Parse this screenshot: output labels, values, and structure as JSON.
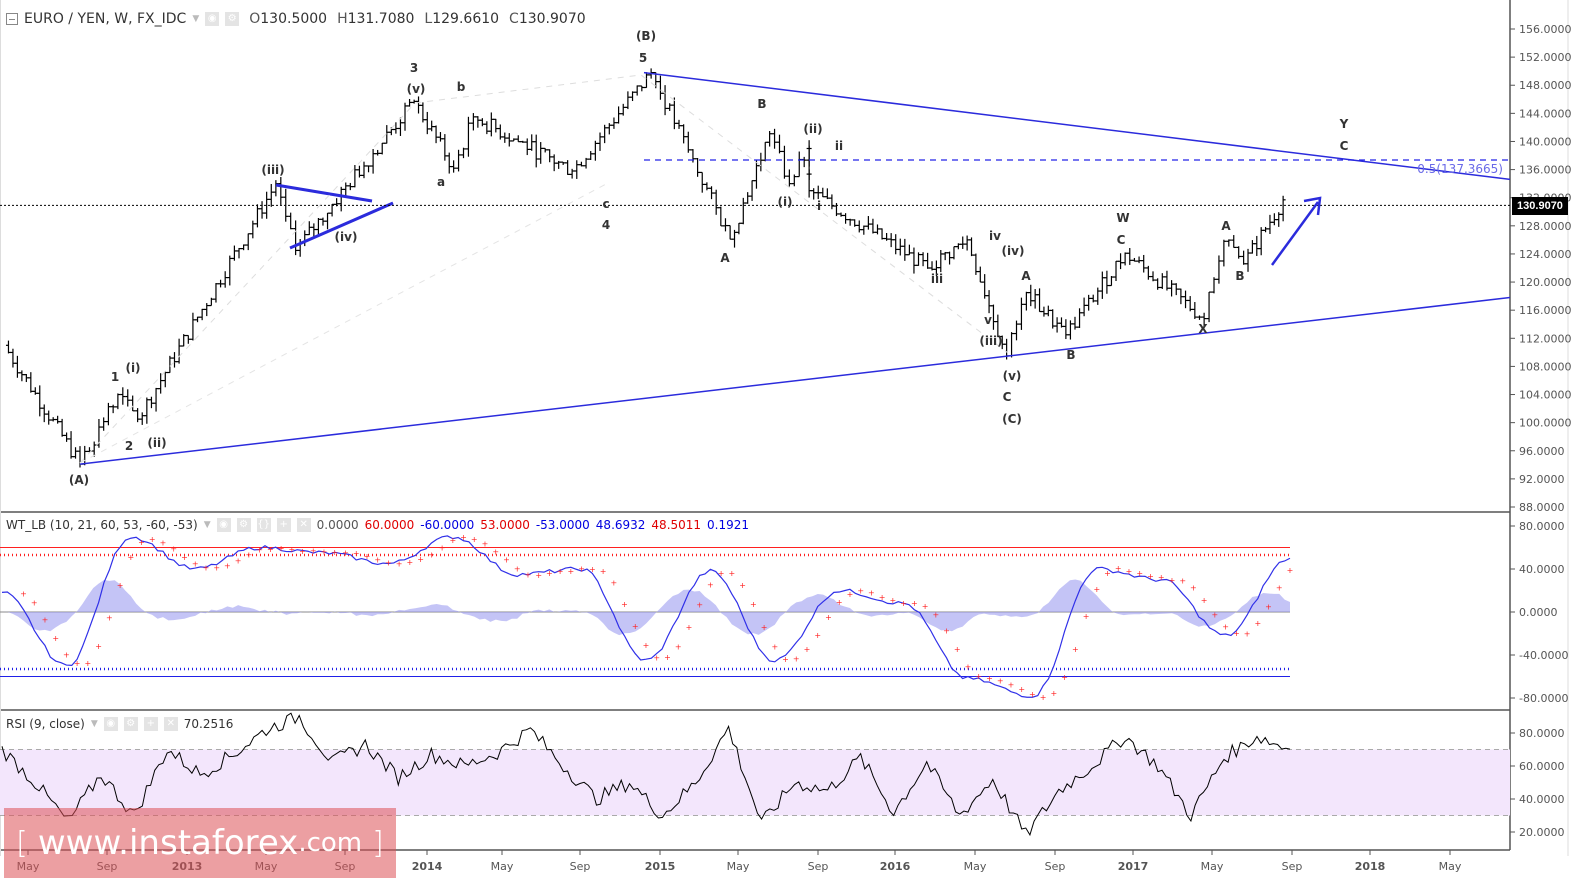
{
  "header": {
    "symbol": "EURO / YEN, W, FX_IDC",
    "ohlc": [
      {
        "label": "O",
        "value": "130.5000"
      },
      {
        "label": "H",
        "value": "131.7080"
      },
      {
        "label": "L",
        "value": "129.6610"
      },
      {
        "label": "C",
        "value": "130.9070"
      }
    ],
    "last_price_tag": "130.9070"
  },
  "icons": {
    "collapse": "minus-box-icon",
    "visibility": "eye-icon",
    "settings": "gear-icon",
    "source": "braces-icon",
    "add": "plus-icon",
    "remove": "close-icon",
    "dropdown": "caret-down-icon"
  },
  "colors": {
    "bars": "#000000",
    "trendline": "#2b2bdc",
    "fib_line": "#2323e6",
    "wt1": "#3030e8",
    "wt2": "#ff2020",
    "wt_hist": "#9c9cf0",
    "ob_level": "#ff2020",
    "os_level": "#2020e8",
    "rsi_line": "#000000",
    "rsi_band": "#f3e6fc",
    "watermark": "#dc5055"
  },
  "wt_panel": {
    "title": "WT_LB (10, 21, 60, 53, -60, -53)",
    "values": [
      {
        "text": "0.0000",
        "color": "grey"
      },
      {
        "text": "60.0000",
        "color": "red"
      },
      {
        "text": "-60.0000",
        "color": "blue"
      },
      {
        "text": "53.0000",
        "color": "red"
      },
      {
        "text": "-53.0000",
        "color": "blue"
      },
      {
        "text": "48.6932",
        "color": "blue"
      },
      {
        "text": "48.5011",
        "color": "red"
      },
      {
        "text": "0.1921",
        "color": "blue"
      }
    ]
  },
  "rsi_panel": {
    "title": "RSI (9, close)",
    "value": "70.2516"
  },
  "watermark": {
    "open": "[",
    "text": "www.instaforex",
    "suffix": ".com",
    "close": "]"
  },
  "fib_label": "0.5(137.3665)",
  "chart_data": [
    {
      "type": "ohlc",
      "title": "EURO / YEN, W, FX_IDC",
      "timeframe": "Weekly",
      "ylim": [
        88,
        156
      ],
      "y_ticks": [
        "156.0000",
        "152.0000",
        "148.0000",
        "144.0000",
        "140.0000",
        "136.0000",
        "132.0000",
        "128.0000",
        "124.0000",
        "120.0000",
        "116.0000",
        "112.0000",
        "108.0000",
        "104.0000",
        "100.0000",
        "96.0000",
        "92.0000",
        "88.0000"
      ],
      "x_ticks": [
        "May",
        "Sep",
        "2013",
        "May",
        "Sep",
        "2014",
        "May",
        "Sep",
        "2015",
        "May",
        "Sep",
        "2016",
        "May",
        "Sep",
        "2017",
        "May",
        "Sep",
        "2018",
        "May"
      ],
      "last_close": 130.907,
      "approx_swings": [
        {
          "date": "2012-03",
          "price": 111
        },
        {
          "date": "2012-07",
          "price": 94.1,
          "label": "(A)"
        },
        {
          "date": "2012-09",
          "price": 104,
          "label": "1 / (i)"
        },
        {
          "date": "2012-10",
          "price": 100.5,
          "label": "2 / (ii)"
        },
        {
          "date": "2013-05",
          "price": 134,
          "label": "(iii)"
        },
        {
          "date": "2013-06",
          "price": 124.5,
          "label": "(iv)"
        },
        {
          "date": "2013-12",
          "price": 145.7,
          "label": "3 / (v)"
        },
        {
          "date": "2014-02",
          "price": 136.2,
          "label": "a"
        },
        {
          "date": "2014-03",
          "price": 143.5,
          "label": "b"
        },
        {
          "date": "2014-08",
          "price": 135.8,
          "label": "c / 4"
        },
        {
          "date": "2014-12",
          "price": 149.8,
          "label": "(B) / 5"
        },
        {
          "date": "2015-04",
          "price": 126.1,
          "label": "A"
        },
        {
          "date": "2015-06",
          "price": 141.1,
          "label": "B"
        },
        {
          "date": "2015-07",
          "price": 134.0,
          "label": "(i)"
        },
        {
          "date": "2015-08",
          "price": 139.0,
          "label": "(ii) / ii"
        },
        {
          "date": "2015-08",
          "price": 133,
          "label": "i"
        },
        {
          "date": "2016-02",
          "price": 122.0,
          "label": "iii"
        },
        {
          "date": "2016-04",
          "price": 126.0,
          "label": "iv / (iv)"
        },
        {
          "date": "2016-06",
          "price": 109.5,
          "label": "v / (iii) / (v) / C / (C)"
        },
        {
          "date": "2016-07",
          "price": 118.5,
          "label": "A"
        },
        {
          "date": "2016-09",
          "price": 112.5,
          "label": "B"
        },
        {
          "date": "2016-12",
          "price": 124.1,
          "label": "W / C"
        },
        {
          "date": "2017-04",
          "price": 114.8,
          "label": "X"
        },
        {
          "date": "2017-05",
          "price": 125.8,
          "label": "A"
        },
        {
          "date": "2017-06",
          "price": 122.6,
          "label": "B"
        },
        {
          "date": "2017-08",
          "price": 131.7
        }
      ],
      "trendlines": [
        {
          "name": "lower support",
          "from": {
            "date": "2012-07",
            "price": 94.1
          },
          "to": {
            "date": "2018-07",
            "price": 117.8
          }
        },
        {
          "name": "upper resistance",
          "from": {
            "date": "2014-12",
            "price": 149.8
          },
          "to": {
            "date": "2018-07",
            "price": 134.6
          }
        },
        {
          "name": "triangle upper",
          "from": {
            "date": "2013-05",
            "price": 134.0
          },
          "to": {
            "date": "2013-09",
            "price": 131.5
          }
        },
        {
          "name": "triangle lower",
          "from": {
            "date": "2013-06",
            "price": 124.5
          },
          "to": {
            "date": "2013-11",
            "price": 131.0
          }
        }
      ],
      "horizontal_levels": [
        {
          "name": "fib 0.5",
          "price": 137.3665,
          "style": "dashed"
        },
        {
          "name": "last price",
          "price": 130.907,
          "style": "dotted"
        }
      ],
      "annotations": [
        "Y",
        "C",
        "blue up arrow (projected rally toward ~137.4)"
      ]
    },
    {
      "type": "line",
      "title": "WT_LB (10, 21, 60, 53, -60, -53)",
      "ylim": [
        -88,
        88
      ],
      "y_ticks": [
        "80.0000",
        "40.0000",
        "0.0000",
        "-40.0000",
        "-80.0000"
      ],
      "levels": {
        "ob1": 60,
        "ob2": 53,
        "os1": -60,
        "os2": -53,
        "zero": 0
      },
      "series": [
        {
          "name": "WT1",
          "last": 48.6932,
          "approx_swings": [
            18,
            -50,
            70,
            40,
            60,
            55,
            45,
            70,
            35,
            40,
            -45,
            38,
            -45,
            20,
            8,
            -62,
            -78,
            40,
            30,
            -22,
            50
          ]
        },
        {
          "name": "WT2",
          "last": 48.5011
        },
        {
          "name": "WT1-WT2 histogram",
          "last": 0.1921
        }
      ]
    },
    {
      "type": "line",
      "title": "RSI (9, close)",
      "ylim": [
        10,
        90
      ],
      "y_ticks": [
        "80.0000",
        "60.0000",
        "40.0000",
        "20.0000"
      ],
      "band": [
        30,
        70
      ],
      "last": 70.2516,
      "approx_swings": [
        70,
        50,
        26,
        55,
        30,
        70,
        55,
        67,
        82,
        90,
        62,
        73,
        53,
        67,
        60,
        68,
        82,
        60,
        40,
        50,
        30,
        50,
        83,
        25,
        50,
        45,
        65,
        32,
        62,
        30,
        52,
        18,
        45,
        60,
        78,
        60,
        30,
        65,
        78,
        70
      ]
    }
  ]
}
